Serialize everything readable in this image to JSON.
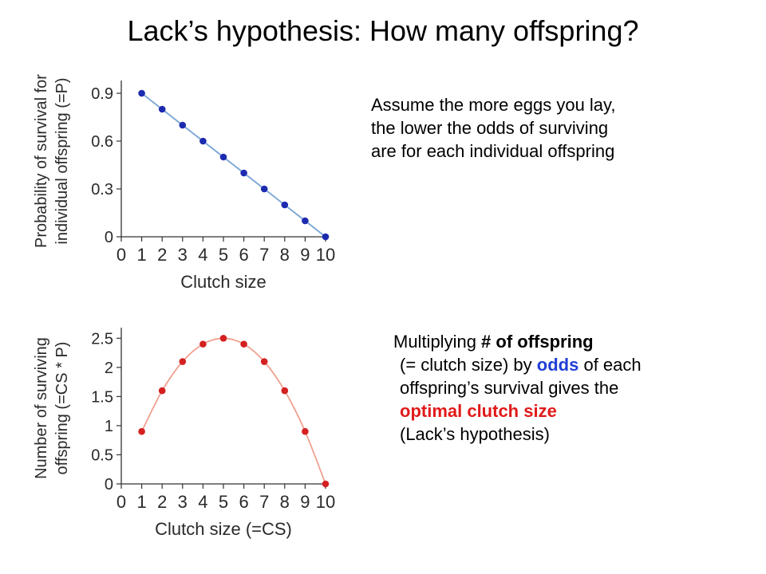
{
  "slide": {
    "title": "Lack’s hypothesis: How many offspring?",
    "text1": [
      "Assume the more eggs you lay,",
      "the lower the odds of surviving",
      "are for each individual offspring"
    ],
    "text2": {
      "l1_pre": "Multiplying ",
      "l1_bold": "# of offspring",
      "l2_pre": "(= clutch size) by ",
      "l2_blue": "odds",
      "l2_post": " of each",
      "l3": "offspring’s survival gives the",
      "l4_red": "optimal clutch size",
      "l5": "(Lack’s hypothesis)"
    }
  },
  "colors": {
    "survival_series": "#1c2ab0",
    "survival_line": "#7aa6d6",
    "surviving_series": "#d42020",
    "surviving_line": "#f0a090"
  },
  "chart_data": [
    {
      "type": "line",
      "title": "",
      "xlabel": "Clutch size",
      "ylabel": [
        "Probability of survival for",
        "individual offspring (=P)"
      ],
      "x": [
        1,
        2,
        3,
        4,
        5,
        6,
        7,
        8,
        9,
        10
      ],
      "series": [
        {
          "values": [
            0.9,
            0.8,
            0.7,
            0.6,
            0.5,
            0.4,
            0.3,
            0.2,
            0.1,
            0.0
          ]
        }
      ],
      "xlim": [
        0,
        10
      ],
      "ylim": [
        0,
        0.95
      ],
      "xticks": [
        "0",
        "1",
        "2",
        "3",
        "4",
        "5",
        "6",
        "7",
        "8",
        "9",
        "10"
      ],
      "yticks": [
        {
          "v": 0,
          "label": "0"
        },
        {
          "v": 0.3,
          "label": "0.3"
        },
        {
          "v": 0.6,
          "label": "0.6"
        },
        {
          "v": 0.9,
          "label": "0.9"
        }
      ],
      "grid": false
    },
    {
      "type": "line",
      "title": "",
      "xlabel": "Clutch size (=CS)",
      "ylabel": [
        "Number of surviving",
        "offspring (=CS * P)"
      ],
      "x": [
        1,
        2,
        3,
        4,
        5,
        6,
        7,
        8,
        9,
        10
      ],
      "series": [
        {
          "values": [
            0.9,
            1.6,
            2.1,
            2.4,
            2.5,
            2.4,
            2.1,
            1.6,
            0.9,
            0.0
          ]
        }
      ],
      "xlim": [
        0,
        10
      ],
      "ylim": [
        0,
        2.6
      ],
      "xticks": [
        "0",
        "1",
        "2",
        "3",
        "4",
        "5",
        "6",
        "7",
        "8",
        "9",
        "10"
      ],
      "yticks": [
        {
          "v": 0,
          "label": "0"
        },
        {
          "v": 0.5,
          "label": "0.5"
        },
        {
          "v": 1,
          "label": "1"
        },
        {
          "v": 1.5,
          "label": "1.5"
        },
        {
          "v": 2,
          "label": "2"
        },
        {
          "v": 2.5,
          "label": "2.5"
        }
      ],
      "grid": false
    }
  ]
}
